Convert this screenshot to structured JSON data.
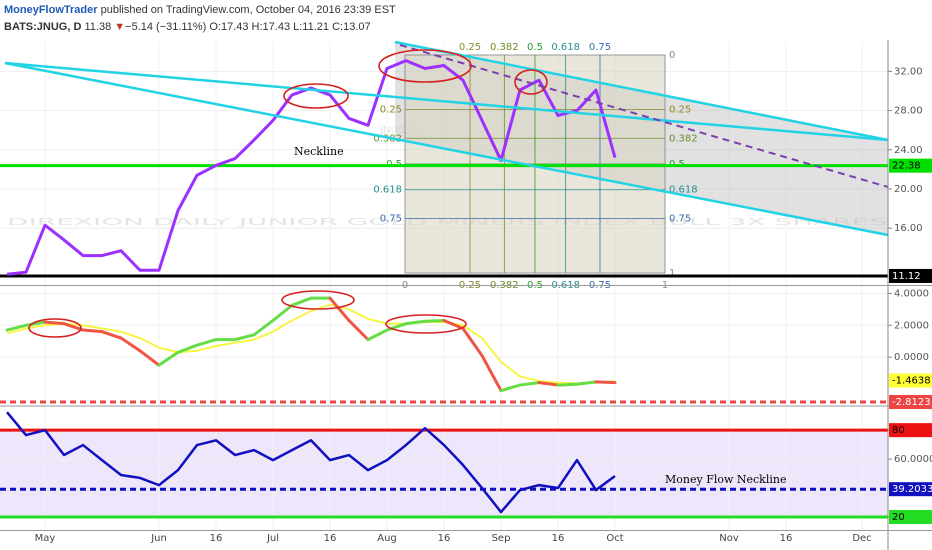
{
  "header": {
    "author": "MoneyFlowTrader",
    "published": "published on TradingView.com, October 04, 2016 23:39 EST",
    "symbol": "BATS:JNUG, D",
    "last": "11.38",
    "arrow": "▼",
    "change": "−5.14 (−31.11%)",
    "ohlc": "O:17.43 H:17.43 L:11.21 C:13.07"
  },
  "chart_data": [
    {
      "type": "line",
      "watermark": "JNUG, D",
      "description": "DIREXION DAILY JUNIOR GOLD MINERS INDEX BULL 3X SHARES",
      "annotation": "Neckline",
      "color": "#9b30ff",
      "values": [
        11.3,
        11.5,
        16.3,
        14.8,
        13.2,
        13.2,
        13.7,
        11.7,
        11.7,
        17.8,
        21.4,
        22.4,
        23.1,
        25.0,
        27.0,
        29.6,
        30.3,
        29.6,
        27.2,
        26.5,
        32.3,
        33.1,
        32.3,
        32.6,
        31.1,
        27.0,
        22.9,
        30.1,
        31.1,
        27.5,
        28.0,
        30.1,
        23.2,
        null,
        null,
        null,
        null,
        null,
        null,
        null,
        null,
        null,
        null,
        null,
        null,
        null,
        null
      ],
      "ylim": [
        10.3,
        35
      ],
      "yticks": [
        {
          "value": 16,
          "label": "16.00"
        },
        {
          "value": 20,
          "label": "20.00"
        },
        {
          "value": 24,
          "label": "24.00"
        },
        {
          "value": 28,
          "label": "28.00"
        },
        {
          "value": 32,
          "label": "32.00"
        }
      ],
      "levels": [
        {
          "value": 22.38,
          "color": "#00e000",
          "style": "solid"
        },
        {
          "value": 11.12,
          "color": "#000000",
          "style": "solid"
        }
      ],
      "fib_levels": [
        0,
        0.25,
        0.382,
        0.5,
        0.618,
        0.75,
        1
      ],
      "fib_colors": [
        "#888888",
        "#8a8a2a",
        "#6a8f2a",
        "#2a9a2a",
        "#2a8f8f",
        "#3a6ab0",
        "#888888"
      ],
      "grid": true
    },
    {
      "type": "line",
      "color_up": "#66dd44",
      "color_down": "#ee5544",
      "values": [
        1.7,
        2.0,
        2.2,
        2.1,
        1.7,
        1.6,
        1.2,
        0.4,
        -0.5,
        0.3,
        0.75,
        1.1,
        1.1,
        1.4,
        2.3,
        3.25,
        3.7,
        3.7,
        2.3,
        1.1,
        1.7,
        2.1,
        2.25,
        2.3,
        1.8,
        0.1,
        -2.1,
        -1.75,
        -1.6,
        -1.75,
        -1.7,
        -1.55,
        -1.6,
        null,
        null,
        null,
        null,
        null,
        null,
        null,
        null,
        null,
        null,
        null,
        null,
        null,
        null
      ],
      "signal": {
        "color": "#f5f542",
        "values": [
          1.5,
          1.8,
          2.0,
          2.1,
          2.0,
          1.8,
          1.6,
          1.2,
          0.6,
          0.3,
          0.4,
          0.7,
          0.9,
          1.1,
          1.6,
          2.3,
          2.9,
          3.3,
          3.0,
          2.4,
          2.1,
          2.1,
          2.2,
          2.2,
          2.0,
          1.2,
          -0.3,
          -1.2,
          -1.5,
          -1.6,
          -1.65,
          -1.6,
          -1.5,
          null,
          null,
          null,
          null,
          null,
          null,
          null,
          null,
          null,
          null,
          null,
          null,
          null,
          null
        ]
      },
      "ylim": [
        -3.0,
        4.4
      ],
      "yticks": [
        {
          "value": 0,
          "label": "0.0000"
        },
        {
          "value": 2,
          "label": "2.0000"
        },
        {
          "value": 4,
          "label": "4.0000"
        }
      ],
      "levels": [
        {
          "value": -1.4638,
          "color": "#ffff33",
          "style": "none"
        },
        {
          "value": -2.8123,
          "color": "#ee4444",
          "style": "dashed"
        }
      ],
      "grid": true
    },
    {
      "type": "line",
      "annotation": "Money Flow Neckline",
      "color": "#1010c0",
      "categories": [
        null,
        null,
        "May",
        null,
        null,
        null,
        null,
        null,
        "Jun",
        null,
        null,
        "16",
        null,
        null,
        "Jul",
        null,
        null,
        "16",
        null,
        null,
        "Aug",
        null,
        null,
        "16",
        null,
        null,
        "Sep",
        null,
        null,
        "16",
        null,
        null,
        "Oct",
        null,
        null,
        null,
        null,
        null,
        "Nov",
        null,
        null,
        "16",
        null,
        null,
        null,
        "Dec",
        null
      ],
      "values": [
        92.4,
        76.6,
        80.0,
        62.8,
        69.7,
        59.3,
        49.0,
        47.0,
        42.0,
        52.4,
        69.7,
        73.0,
        62.8,
        66.2,
        59.3,
        66.2,
        73.0,
        59.3,
        62.8,
        52.4,
        59.3,
        69.7,
        81.4,
        69.7,
        55.9,
        40.0,
        23.4,
        38.6,
        42.0,
        40.0,
        59.3,
        38.6,
        48.3,
        null,
        null,
        null,
        null,
        null,
        null,
        null,
        null,
        null,
        null,
        null,
        null,
        null,
        null
      ],
      "ylim": [
        11,
        96
      ],
      "yticks": [
        {
          "value": 20,
          "label": "20.0000"
        },
        {
          "value": 60,
          "label": "60.0000"
        },
        {
          "value": 80,
          "label": "80.0000"
        }
      ],
      "levels": [
        {
          "value": 80,
          "color": "#ee1111",
          "style": "solid"
        },
        {
          "value": 20,
          "color": "#22dd22",
          "style": "solid"
        },
        {
          "value": 39.2033,
          "color": "#1010c0",
          "style": "dashed"
        }
      ],
      "band": {
        "from": 20,
        "to": 80,
        "color": "#eee6fb"
      },
      "grid": true
    }
  ]
}
